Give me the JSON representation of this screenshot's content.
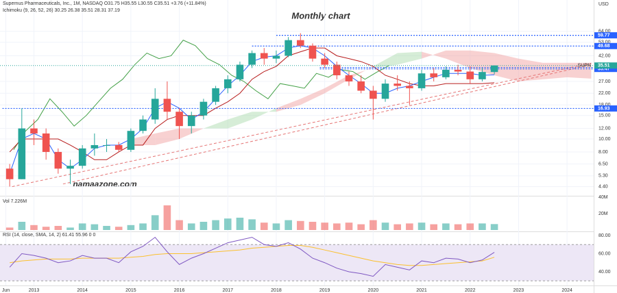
{
  "header": {
    "symbol": "Supernus Pharmaceuticals, Inc., 1M, NASDAQ  O31.75  H35.55  L30.55  C35.51  +3.76 (+11.84%)",
    "ichimoku": "Ichimoku (9, 26, 52, 26)  30.25  26.38  35.51  28.31  37.19",
    "volume": "Vol  7.226M",
    "rsi": "RSI (14, close, SMA, 14, 2)  61.41  55.96  0  0",
    "currency": "USD"
  },
  "chart_data": {
    "type": "candlestick",
    "title": "Monthly chart",
    "watermark": "namaazone.com",
    "ticker": "SUPN",
    "log_scale": true,
    "up_color": "#26a69a",
    "down_color": "#ef5350",
    "x": [
      2012.5,
      2012.75,
      2013,
      2013.25,
      2013.5,
      2013.75,
      2014,
      2014.25,
      2014.5,
      2014.75,
      2015,
      2015.25,
      2015.5,
      2015.75,
      2016,
      2016.25,
      2016.5,
      2016.75,
      2017,
      2017.25,
      2017.5,
      2017.75,
      2018,
      2018.25,
      2018.5,
      2018.75,
      2019,
      2019.25,
      2019.5,
      2019.75,
      2020,
      2020.25,
      2020.5,
      2020.75,
      2021,
      2021.25,
      2021.5,
      2021.75,
      2022,
      2022.25,
      2022.5
    ],
    "open": [
      6,
      5,
      12,
      11,
      8,
      6,
      6.3,
      8.5,
      9,
      9,
      8.3,
      11.5,
      14,
      20,
      16,
      12.5,
      15,
      19,
      24,
      28,
      36,
      44,
      40,
      42,
      55,
      50,
      40,
      36,
      30,
      27,
      23,
      20,
      26,
      25,
      24,
      31,
      29,
      33,
      32,
      28,
      31.75
    ],
    "high": [
      6.5,
      17,
      14,
      12,
      8.5,
      7,
      9,
      11,
      10,
      9.5,
      12,
      15,
      24,
      27,
      17,
      16,
      20,
      25,
      30,
      38,
      46,
      48,
      46,
      58,
      62,
      52,
      44,
      38,
      32,
      30,
      25,
      28,
      30,
      27,
      33,
      34,
      35,
      36,
      35,
      34,
      35.55
    ],
    "low": [
      4.4,
      5,
      9,
      7,
      5.5,
      4.6,
      6,
      7.5,
      8,
      8,
      8,
      11,
      13,
      14,
      10,
      11,
      14,
      18,
      22,
      27,
      34,
      36,
      37,
      41,
      48,
      38,
      34,
      28,
      25,
      22,
      14,
      19,
      23,
      18,
      23,
      27,
      28,
      30,
      26,
      27,
      30.55
    ],
    "close": [
      5,
      12,
      11,
      8,
      6,
      6.3,
      8.5,
      9,
      9,
      8.3,
      11.5,
      14,
      20,
      16,
      12.5,
      15,
      19,
      24,
      28,
      36,
      44,
      40,
      42,
      55,
      50,
      40,
      36,
      30,
      27,
      23,
      20,
      26,
      25,
      24,
      31,
      29,
      33,
      32,
      28,
      31.75,
      35.51
    ],
    "tenkan": {
      "color": "#2962ff",
      "values": [
        5.5,
        10,
        11,
        10,
        7,
        6,
        7,
        8.5,
        9,
        9,
        10,
        12,
        17,
        19,
        17,
        14,
        16,
        20,
        25,
        30,
        38,
        41,
        42,
        48,
        50,
        48,
        42,
        35,
        30,
        26,
        22,
        22,
        24,
        25,
        27,
        29,
        31,
        31,
        31,
        30,
        30.25
      ]
    },
    "kijun": {
      "color": "#b71c1c",
      "values": [
        8,
        10,
        10,
        10,
        10,
        9,
        8,
        7,
        7,
        8,
        9,
        9,
        12,
        14,
        15,
        15,
        15,
        17,
        19,
        22,
        28,
        32,
        35,
        42,
        45,
        48,
        48,
        42,
        40,
        38,
        35,
        30,
        28,
        26,
        25,
        25,
        26,
        26,
        26,
        26,
        26.38
      ]
    },
    "lagging": {
      "color": "#43a047",
      "x": [
        2012.58,
        2012.83,
        2013.08,
        2013.33,
        2013.58,
        2013.83,
        2014.08,
        2014.33,
        2014.58,
        2014.83,
        2015.08,
        2015.33,
        2015.58,
        2015.83,
        2016.08,
        2016.33,
        2016.58,
        2016.83,
        2017.08,
        2017.33,
        2017.58,
        2017.83,
        2018.08,
        2018.33,
        2018.58,
        2018.83,
        2019.08,
        2019.33,
        2019.58,
        2019.83,
        2020.08,
        2020.33
      ],
      "values": [
        8.3,
        11.5,
        14,
        20,
        16,
        12.5,
        15,
        19,
        24,
        28,
        36,
        44,
        40,
        42,
        55,
        50,
        40,
        36,
        30,
        27,
        23,
        20,
        26,
        25,
        24,
        31,
        29,
        33,
        32,
        28,
        31.75,
        35.51
      ]
    },
    "cloud": {
      "up_color": "#a5d6a7",
      "down_color": "#ef9a9a",
      "x": [
        2015,
        2015.5,
        2016,
        2016.5,
        2017,
        2017.5,
        2018,
        2018.5,
        2019,
        2019.5,
        2020,
        2020.5,
        2021,
        2021.5,
        2022,
        2022.5,
        2023,
        2023.5,
        2024,
        2024.5
      ],
      "span_a": [
        9,
        9,
        10,
        12,
        14,
        16,
        16,
        18,
        22,
        28,
        35,
        44,
        45,
        40,
        34,
        30,
        27,
        28,
        29,
        28.31
      ],
      "span_b": [
        10,
        11,
        12,
        12,
        12,
        14,
        17,
        20,
        24,
        30,
        34,
        36,
        40,
        46,
        46,
        44,
        40,
        37.19,
        37.19,
        37.19
      ]
    },
    "levels": [
      {
        "value": 59.77,
        "start": 2018,
        "label": "59.77"
      },
      {
        "value": 49.68,
        "start": 2017.5,
        "label": "49.68"
      },
      {
        "value": 34.31,
        "start": 2018.9,
        "label": "34.31"
      },
      {
        "value": 33.47,
        "start": 2018.9,
        "label": "33.47"
      },
      {
        "value": 16.93,
        "start": 2012.35,
        "label": "16.93"
      }
    ],
    "level_color": "#2962ff",
    "last": {
      "value": 35.51,
      "label": "35.51"
    },
    "trendlines": {
      "color": "#e57373",
      "lines": [
        {
          "x": [
            2012.55,
            2024.5
          ],
          "y": [
            4.4,
            37
          ]
        },
        {
          "x": [
            2013.6,
            2024.5
          ],
          "y": [
            4.6,
            36
          ]
        }
      ]
    },
    "ylim": [
      3.8,
      100
    ],
    "yticks": [
      {
        "value": 64,
        "label": "64.00"
      },
      {
        "value": 53,
        "label": "53.00"
      },
      {
        "value": 42,
        "label": "42.00"
      },
      {
        "value": 27,
        "label": "27.00"
      },
      {
        "value": 22,
        "label": "22.00"
      },
      {
        "value": 18,
        "label": "18.00"
      },
      {
        "value": 15,
        "label": "15.00"
      },
      {
        "value": 12,
        "label": "12.00"
      },
      {
        "value": 10,
        "label": "10.00"
      },
      {
        "value": 8,
        "label": "8.00"
      },
      {
        "value": 6.5,
        "label": "6.50"
      },
      {
        "value": 5.3,
        "label": "5.30"
      },
      {
        "value": 4.4,
        "label": "4.40"
      }
    ],
    "xlim": [
      2012.3,
      2024.55
    ],
    "xticks": [
      {
        "value": 2012.42,
        "label": "Jun"
      },
      2013,
      2014,
      2015,
      2016,
      2017,
      2018,
      2019,
      2020,
      2021,
      2022,
      2023,
      2024
    ],
    "volume": {
      "values": [
        3000000,
        10000000,
        6000000,
        4000000,
        5000000,
        3000000,
        8000000,
        7000000,
        5000000,
        4000000,
        6000000,
        8000000,
        18000000,
        30000000,
        12000000,
        8000000,
        10000000,
        12000000,
        14000000,
        15000000,
        13000000,
        9000000,
        8000000,
        12000000,
        11000000,
        10000000,
        9000000,
        8000000,
        9000000,
        7000000,
        12000000,
        9000000,
        7000000,
        8000000,
        9000000,
        7000000,
        8000000,
        7000000,
        8000000,
        8000000,
        7226000
      ],
      "ylim": [
        0,
        40800000
      ],
      "yticks": [
        {
          "value": 40000000,
          "label": "40M"
        },
        {
          "value": 20000000,
          "label": "20M"
        }
      ]
    },
    "rsi": {
      "color": "#7e57c2",
      "ma_color": "#fbc02d",
      "band": [
        30,
        70
      ],
      "band_color": "#ede7f6",
      "values": [
        45,
        60,
        58,
        55,
        50,
        52,
        58,
        55,
        55,
        50,
        62,
        68,
        78,
        62,
        48,
        55,
        60,
        66,
        72,
        75,
        78,
        70,
        68,
        72,
        65,
        55,
        50,
        44,
        40,
        38,
        35,
        48,
        45,
        42,
        52,
        50,
        55,
        54,
        50,
        53,
        61.41
      ],
      "ma": [
        50,
        52,
        53,
        54,
        54,
        54,
        55,
        55,
        55,
        55,
        56,
        57,
        59,
        60,
        60,
        60,
        61,
        62,
        63,
        64,
        66,
        67,
        68,
        69,
        69,
        67,
        64,
        61,
        58,
        55,
        52,
        50,
        48,
        47,
        47,
        48,
        49,
        50,
        51,
        52,
        55.96
      ],
      "ylim": [
        26.4,
        83
      ],
      "yticks": [
        {
          "value": 80,
          "label": "80.00"
        },
        {
          "value": 60,
          "label": "60.00"
        },
        {
          "value": 40,
          "label": "40.00"
        }
      ]
    }
  }
}
